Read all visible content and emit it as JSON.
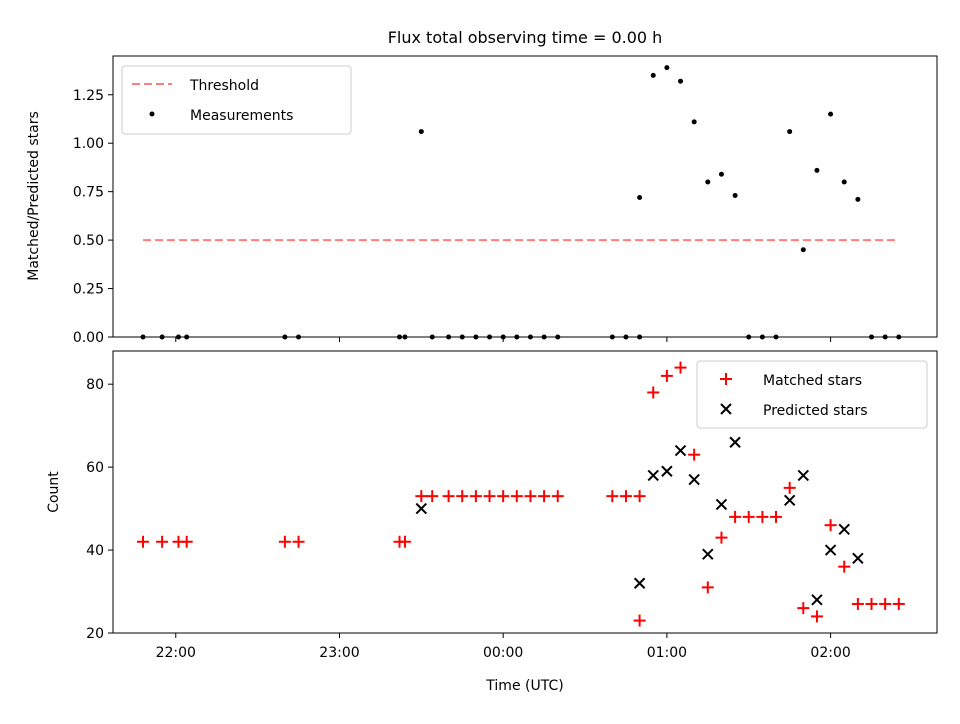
{
  "title": "Flux total observing time = 0.00 h",
  "colors": {
    "threshold": "#ff7f7f",
    "measurements": "#000000",
    "matched": "#ff0000",
    "predicted": "#000000"
  },
  "chart_data": [
    {
      "type": "scatter",
      "title": "Flux total observing time = 0.00 h",
      "xlabel": "",
      "ylabel": "Matched/Predicted stars",
      "ylim": [
        0,
        1.45
      ],
      "xlim": [
        "21:37",
        "02:39"
      ],
      "yticks": [
        "0.00",
        "0.25",
        "0.50",
        "0.75",
        "1.00",
        "1.25"
      ],
      "ytick_values": [
        0,
        0.25,
        0.5,
        0.75,
        1.0,
        1.25
      ],
      "xtick_values": [
        "22:00",
        "23:00",
        "00:00",
        "01:00",
        "02:00"
      ],
      "legend": {
        "placement": "upper left",
        "entries": [
          "Threshold",
          "Measurements"
        ]
      },
      "series": [
        {
          "name": "Threshold",
          "kind": "dashed-line",
          "x": [
            "21:48",
            "02:24"
          ],
          "y": [
            0.5,
            0.5
          ]
        },
        {
          "name": "Measurements",
          "kind": "points",
          "x": [
            "21:48",
            "21:55",
            "22:01",
            "22:04",
            "22:40",
            "22:45",
            "23:22",
            "23:24",
            "23:34",
            "23:40",
            "23:45",
            "23:50",
            "23:55",
            "24:00",
            "24:05",
            "24:10",
            "24:15",
            "24:20",
            "24:40",
            "24:45",
            "24:50",
            "24:50",
            "24:55",
            "25:00",
            "25:05",
            "25:10",
            "25:15",
            "25:20",
            "25:25",
            "25:30",
            "25:35",
            "25:40",
            "25:45",
            "25:50",
            "25:55",
            "26:00",
            "26:05",
            "26:10",
            "26:15",
            "26:20",
            "26:25",
            "23:30"
          ],
          "y": [
            0,
            0,
            0,
            0,
            0,
            0,
            0,
            0,
            0,
            0,
            0,
            0,
            0,
            0,
            0,
            0,
            0,
            0,
            0,
            0,
            0,
            0.72,
            1.35,
            1.39,
            1.32,
            1.11,
            0.8,
            0.84,
            0.73,
            0,
            0,
            0,
            1.06,
            0.45,
            0.86,
            1.15,
            0.8,
            0.71,
            0,
            0,
            0,
            1.06
          ]
        }
      ]
    },
    {
      "type": "scatter",
      "xlabel": "Time (UTC)",
      "ylabel": "Count",
      "ylim": [
        20,
        88
      ],
      "xlim": [
        "21:37",
        "02:39"
      ],
      "yticks": [
        "20",
        "40",
        "60",
        "80"
      ],
      "ytick_values": [
        20,
        40,
        60,
        80
      ],
      "xticks": [
        "22:00",
        "23:00",
        "00:00",
        "01:00",
        "02:00"
      ],
      "xtick_values": [
        "22:00",
        "23:00",
        "00:00",
        "01:00",
        "02:00"
      ],
      "legend": {
        "placement": "upper right",
        "entries": [
          "Matched stars",
          "Predicted stars"
        ]
      },
      "series": [
        {
          "name": "Matched stars",
          "marker": "plus",
          "x": [
            "21:48",
            "21:55",
            "22:01",
            "22:04",
            "22:40",
            "22:45",
            "23:22",
            "23:24",
            "23:30",
            "23:34",
            "23:40",
            "23:45",
            "23:50",
            "23:55",
            "24:00",
            "24:05",
            "24:10",
            "24:15",
            "24:20",
            "24:40",
            "24:45",
            "24:50",
            "24:50",
            "24:55",
            "25:00",
            "25:05",
            "25:10",
            "25:15",
            "25:20",
            "25:25",
            "25:30",
            "25:35",
            "25:40",
            "25:45",
            "25:50",
            "25:55",
            "26:00",
            "26:05",
            "26:10",
            "26:15",
            "26:20",
            "26:25"
          ],
          "y": [
            42,
            42,
            42,
            42,
            42,
            42,
            42,
            42,
            53,
            53,
            53,
            53,
            53,
            53,
            53,
            53,
            53,
            53,
            53,
            53,
            53,
            53,
            23,
            78,
            82,
            84,
            63,
            31,
            43,
            48,
            48,
            48,
            48,
            55,
            26,
            24,
            46,
            36,
            27,
            27,
            27,
            27
          ]
        },
        {
          "name": "Predicted stars",
          "marker": "x",
          "x": [
            "23:30",
            "24:50",
            "24:55",
            "25:00",
            "25:05",
            "25:10",
            "25:15",
            "25:20",
            "25:25",
            "25:45",
            "25:50",
            "25:55",
            "26:00",
            "26:05",
            "26:10"
          ],
          "y": [
            50,
            32,
            58,
            59,
            64,
            57,
            39,
            51,
            66,
            52,
            58,
            28,
            40,
            45,
            38
          ]
        }
      ]
    }
  ]
}
